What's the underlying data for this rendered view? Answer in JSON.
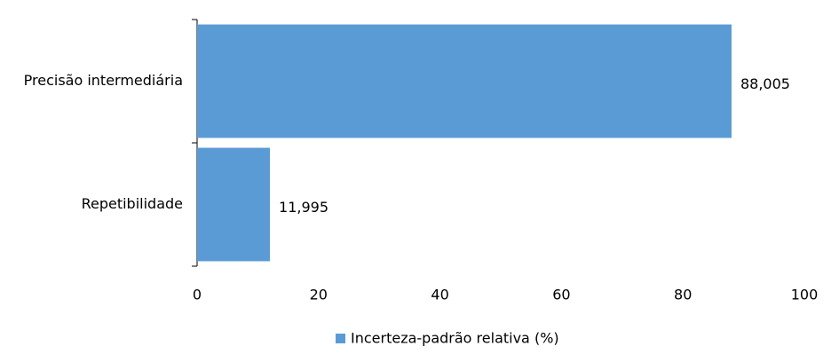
{
  "chart_data": {
    "type": "bar",
    "orientation": "horizontal",
    "categories": [
      "Precisão intermediária",
      "Repetibilidade"
    ],
    "series": [
      {
        "name": "Incerteza-padrão relativa (%)",
        "color": "#5b9bd5",
        "values": [
          88.005,
          11.995
        ],
        "value_labels": [
          "88,005",
          "11,995"
        ]
      }
    ],
    "xlim": [
      0,
      100
    ],
    "xticks": [
      0,
      20,
      40,
      60,
      80,
      100
    ],
    "legend": "bottom"
  }
}
